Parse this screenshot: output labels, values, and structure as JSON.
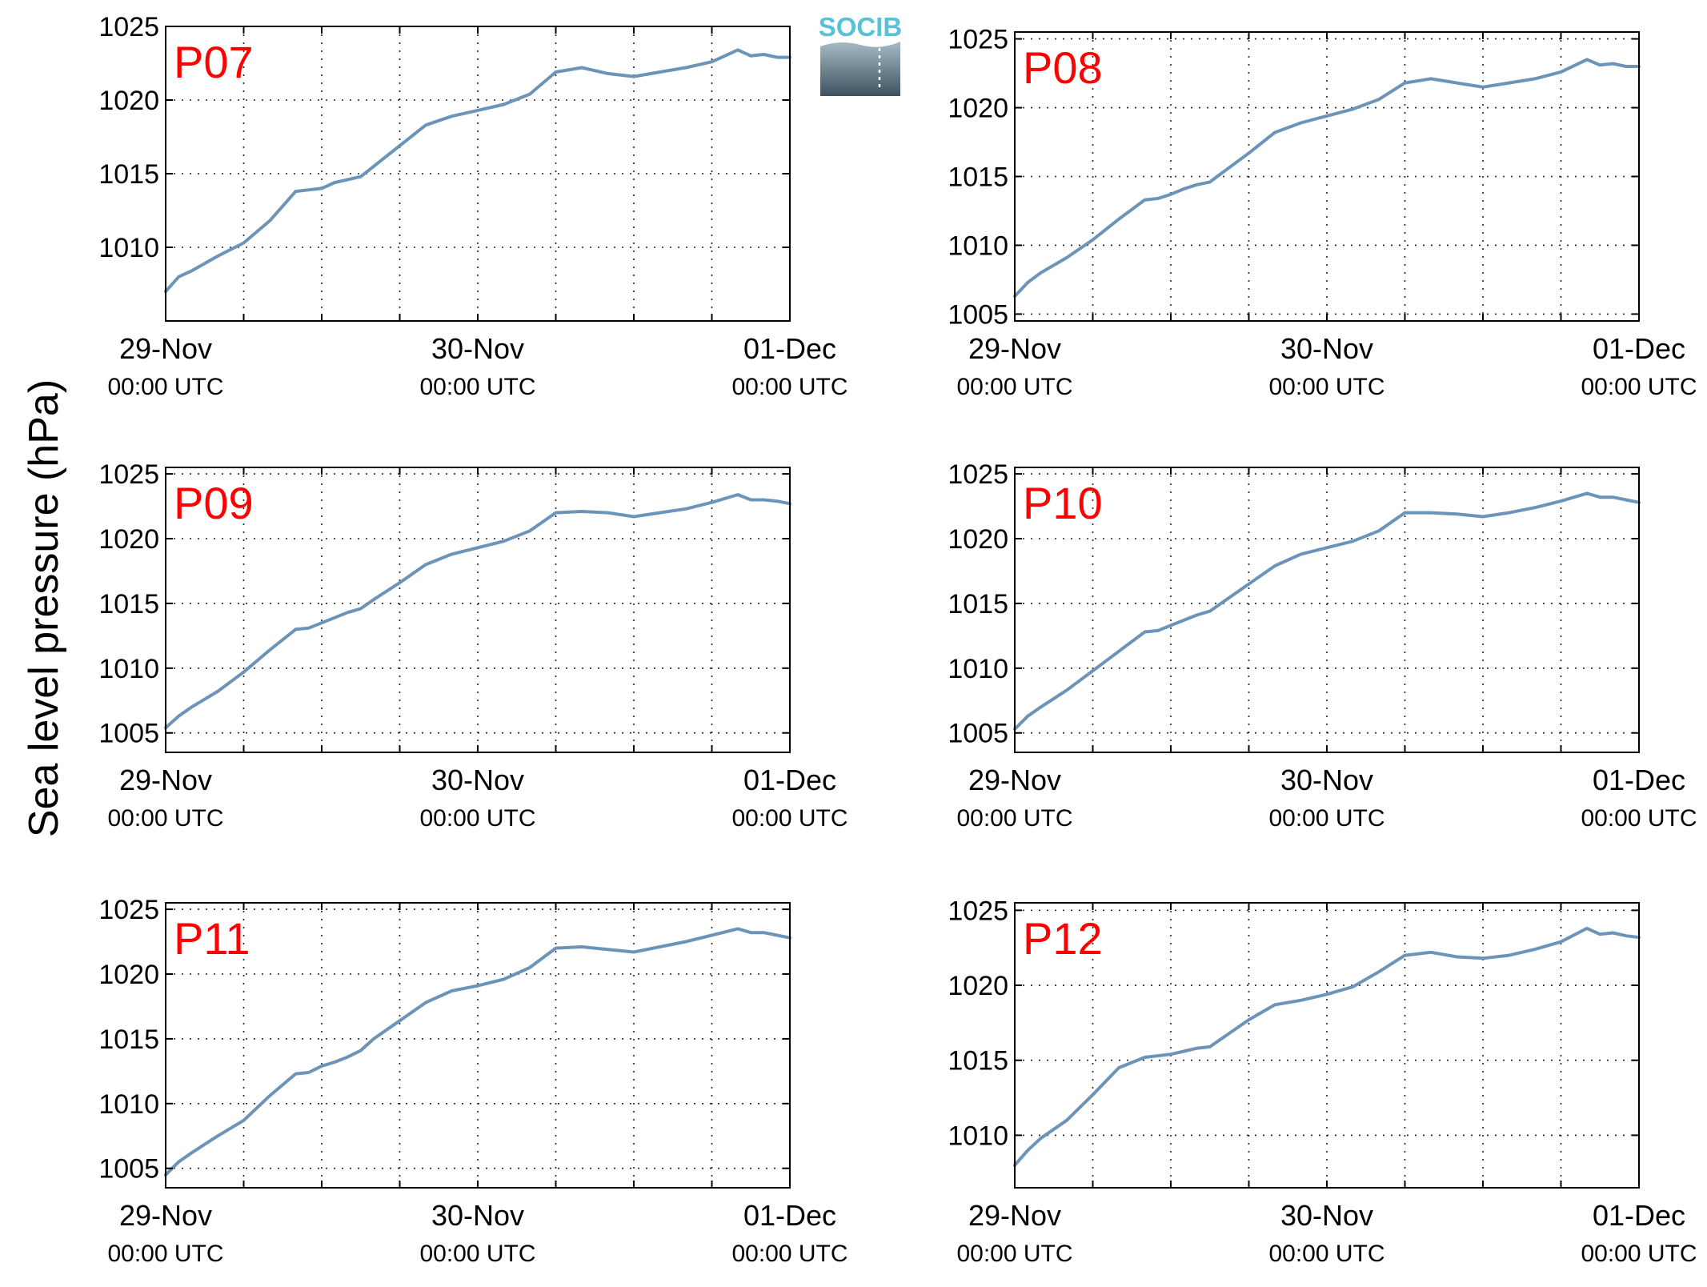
{
  "figure": {
    "ylabel": "Sea level pressure (hPa)",
    "logo_text": "SOCIB",
    "colors": {
      "line": "#6b94b8",
      "panel_label": "#ff0000",
      "axis": "#000000",
      "grid": "#222222"
    }
  },
  "chart_data": [
    {
      "type": "line",
      "title": "P07",
      "grid": true,
      "xlim": [
        "2011-11-29 00:00",
        "2011-12-01 00:00"
      ],
      "xticks": [
        {
          "date": "29-Nov",
          "time": "00:00 UTC"
        },
        {
          "date": "30-Nov",
          "time": "00:00 UTC"
        },
        {
          "date": "01-Dec",
          "time": "00:00 UTC"
        }
      ],
      "ylim": [
        1005.0,
        1025.0
      ],
      "yticks": [
        1010,
        1015,
        1020,
        1025
      ],
      "series": [
        {
          "x_hours": [
            0,
            1,
            2,
            4,
            6,
            8,
            10,
            11,
            12,
            13,
            14,
            15,
            16,
            18,
            20,
            22,
            24,
            26,
            28,
            30,
            32,
            34,
            36,
            38,
            40,
            42,
            44,
            45,
            46,
            47,
            48
          ],
          "values": [
            1007.0,
            1008.0,
            1008.4,
            1009.4,
            1010.3,
            1011.8,
            1013.8,
            1013.9,
            1014.0,
            1014.4,
            1014.6,
            1014.8,
            1015.5,
            1016.9,
            1018.3,
            1018.9,
            1019.3,
            1019.7,
            1020.4,
            1021.9,
            1022.2,
            1021.8,
            1021.6,
            1021.9,
            1022.2,
            1022.6,
            1023.4,
            1023.0,
            1023.1,
            1022.9,
            1022.9
          ]
        }
      ]
    },
    {
      "type": "line",
      "title": "P08",
      "grid": true,
      "xlim": [
        "2011-11-29 00:00",
        "2011-12-01 00:00"
      ],
      "xticks": [
        {
          "date": "29-Nov",
          "time": "00:00 UTC"
        },
        {
          "date": "30-Nov",
          "time": "00:00 UTC"
        },
        {
          "date": "01-Dec",
          "time": "00:00 UTC"
        }
      ],
      "ylim": [
        1004.5,
        1025.5
      ],
      "yticks": [
        1005,
        1010,
        1015,
        1020,
        1025
      ],
      "series": [
        {
          "x_hours": [
            0,
            1,
            2,
            4,
            6,
            8,
            10,
            11,
            12,
            13,
            14,
            15,
            16,
            18,
            20,
            22,
            24,
            26,
            28,
            30,
            32,
            34,
            36,
            38,
            40,
            42,
            44,
            45,
            46,
            47,
            48
          ],
          "values": [
            1006.3,
            1007.3,
            1008.0,
            1009.1,
            1010.4,
            1011.9,
            1013.3,
            1013.4,
            1013.7,
            1014.1,
            1014.4,
            1014.6,
            1015.3,
            1016.7,
            1018.2,
            1018.9,
            1019.4,
            1019.9,
            1020.6,
            1021.8,
            1022.1,
            1021.8,
            1021.5,
            1021.8,
            1022.1,
            1022.6,
            1023.5,
            1023.1,
            1023.2,
            1023.0,
            1023.0
          ]
        }
      ]
    },
    {
      "type": "line",
      "title": "P09",
      "grid": true,
      "xlim": [
        "2011-11-29 00:00",
        "2011-12-01 00:00"
      ],
      "xticks": [
        {
          "date": "29-Nov",
          "time": "00:00 UTC"
        },
        {
          "date": "30-Nov",
          "time": "00:00 UTC"
        },
        {
          "date": "01-Dec",
          "time": "00:00 UTC"
        }
      ],
      "ylim": [
        1003.5,
        1025.5
      ],
      "yticks": [
        1005,
        1010,
        1015,
        1020,
        1025
      ],
      "series": [
        {
          "x_hours": [
            0,
            1,
            2,
            4,
            6,
            8,
            10,
            11,
            12,
            13,
            14,
            15,
            16,
            18,
            20,
            22,
            24,
            26,
            28,
            30,
            32,
            34,
            36,
            38,
            40,
            42,
            44,
            45,
            46,
            47,
            48
          ],
          "values": [
            1005.4,
            1006.3,
            1007.0,
            1008.2,
            1009.7,
            1011.4,
            1013.0,
            1013.1,
            1013.5,
            1013.9,
            1014.3,
            1014.6,
            1015.3,
            1016.6,
            1018.0,
            1018.8,
            1019.3,
            1019.8,
            1020.6,
            1022.0,
            1022.1,
            1022.0,
            1021.7,
            1022.0,
            1022.3,
            1022.8,
            1023.4,
            1023.0,
            1023.0,
            1022.9,
            1022.7
          ]
        }
      ]
    },
    {
      "type": "line",
      "title": "P10",
      "grid": true,
      "xlim": [
        "2011-11-29 00:00",
        "2011-12-01 00:00"
      ],
      "xticks": [
        {
          "date": "29-Nov",
          "time": "00:00 UTC"
        },
        {
          "date": "30-Nov",
          "time": "00:00 UTC"
        },
        {
          "date": "01-Dec",
          "time": "00:00 UTC"
        }
      ],
      "ylim": [
        1003.5,
        1025.5
      ],
      "yticks": [
        1005,
        1010,
        1015,
        1020,
        1025
      ],
      "series": [
        {
          "x_hours": [
            0,
            1,
            2,
            4,
            6,
            8,
            10,
            11,
            12,
            13,
            14,
            15,
            16,
            18,
            20,
            22,
            24,
            26,
            28,
            30,
            32,
            34,
            36,
            38,
            40,
            42,
            44,
            45,
            46,
            47,
            48
          ],
          "values": [
            1005.3,
            1006.3,
            1007.0,
            1008.3,
            1009.8,
            1011.3,
            1012.8,
            1012.9,
            1013.3,
            1013.7,
            1014.1,
            1014.4,
            1015.1,
            1016.5,
            1017.9,
            1018.8,
            1019.3,
            1019.8,
            1020.6,
            1022.0,
            1022.0,
            1021.9,
            1021.7,
            1022.0,
            1022.4,
            1022.9,
            1023.5,
            1023.2,
            1023.2,
            1023.0,
            1022.8
          ]
        }
      ]
    },
    {
      "type": "line",
      "title": "P11",
      "grid": true,
      "xlim": [
        "2011-11-29 00:00",
        "2011-12-01 00:00"
      ],
      "xticks": [
        {
          "date": "29-Nov",
          "time": "00:00 UTC"
        },
        {
          "date": "30-Nov",
          "time": "00:00 UTC"
        },
        {
          "date": "01-Dec",
          "time": "00:00 UTC"
        }
      ],
      "ylim": [
        1003.5,
        1025.5
      ],
      "yticks": [
        1005,
        1010,
        1015,
        1020,
        1025
      ],
      "series": [
        {
          "x_hours": [
            0,
            1,
            2,
            4,
            6,
            8,
            10,
            11,
            12,
            13,
            14,
            15,
            16,
            18,
            20,
            22,
            24,
            26,
            28,
            30,
            32,
            34,
            36,
            38,
            40,
            42,
            44,
            45,
            46,
            47,
            48
          ],
          "values": [
            1004.5,
            1005.5,
            1006.2,
            1007.5,
            1008.7,
            1010.6,
            1012.3,
            1012.4,
            1012.9,
            1013.2,
            1013.6,
            1014.1,
            1015.0,
            1016.4,
            1017.8,
            1018.7,
            1019.1,
            1019.6,
            1020.5,
            1022.0,
            1022.1,
            1021.9,
            1021.7,
            1022.1,
            1022.5,
            1023.0,
            1023.5,
            1023.2,
            1023.2,
            1023.0,
            1022.8
          ]
        }
      ]
    },
    {
      "type": "line",
      "title": "P12",
      "grid": true,
      "xlim": [
        "2011-11-29 00:00",
        "2011-12-01 00:00"
      ],
      "xticks": [
        {
          "date": "29-Nov",
          "time": "00:00 UTC"
        },
        {
          "date": "30-Nov",
          "time": "00:00 UTC"
        },
        {
          "date": "01-Dec",
          "time": "00:00 UTC"
        }
      ],
      "ylim": [
        1006.5,
        1025.5
      ],
      "yticks": [
        1010,
        1015,
        1020,
        1025
      ],
      "series": [
        {
          "x_hours": [
            0,
            1,
            2,
            4,
            6,
            8,
            10,
            11,
            12,
            13,
            14,
            15,
            16,
            18,
            20,
            22,
            24,
            26,
            28,
            30,
            32,
            34,
            36,
            38,
            40,
            42,
            44,
            45,
            46,
            47,
            48
          ],
          "values": [
            1008.0,
            1009.0,
            1009.8,
            1011.0,
            1012.7,
            1014.5,
            1015.2,
            1015.3,
            1015.4,
            1015.6,
            1015.8,
            1015.9,
            1016.5,
            1017.7,
            1018.7,
            1019.0,
            1019.4,
            1019.9,
            1020.9,
            1022.0,
            1022.2,
            1021.9,
            1021.8,
            1022.0,
            1022.4,
            1022.9,
            1023.8,
            1023.4,
            1023.5,
            1023.3,
            1023.2
          ]
        }
      ]
    }
  ]
}
